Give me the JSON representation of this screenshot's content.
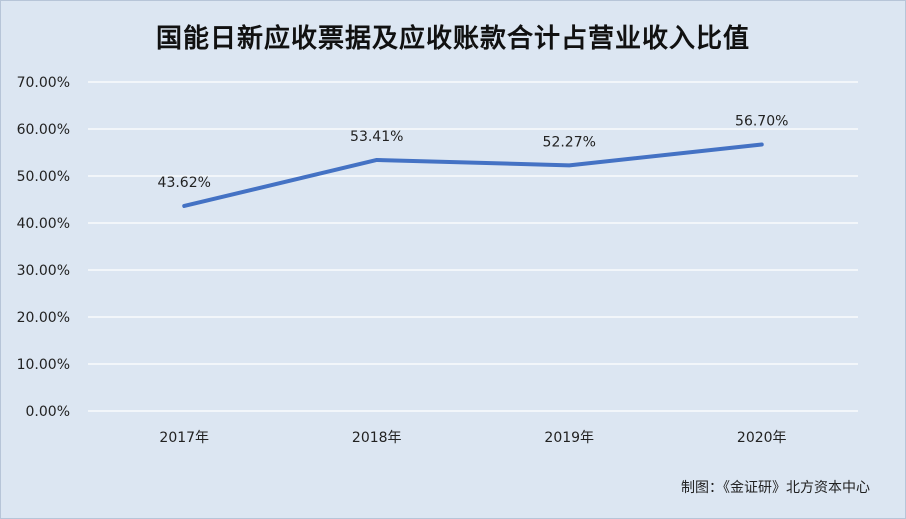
{
  "chart_data": {
    "type": "line",
    "title": "国能日新应收票据及应收账款合计占营业收入比值",
    "categories": [
      "2017年",
      "2018年",
      "2019年",
      "2020年"
    ],
    "series": [
      {
        "values": [
          43.62,
          53.41,
          52.27,
          56.7
        ],
        "labels": [
          "43.62%",
          "53.41%",
          "52.27%",
          "56.70%"
        ],
        "color": "#4472c4"
      }
    ],
    "yticks": [
      "0.00%",
      "10.00%",
      "20.00%",
      "30.00%",
      "40.00%",
      "50.00%",
      "60.00%",
      "70.00%"
    ],
    "ylim": [
      0,
      70
    ],
    "grid": true,
    "xlabel": "",
    "ylabel": ""
  },
  "credit": "制图：《金证研》北方资本中心",
  "colors": {
    "background": "#dce6f2",
    "gridline": "#ffffff",
    "line": "#4472c4"
  }
}
